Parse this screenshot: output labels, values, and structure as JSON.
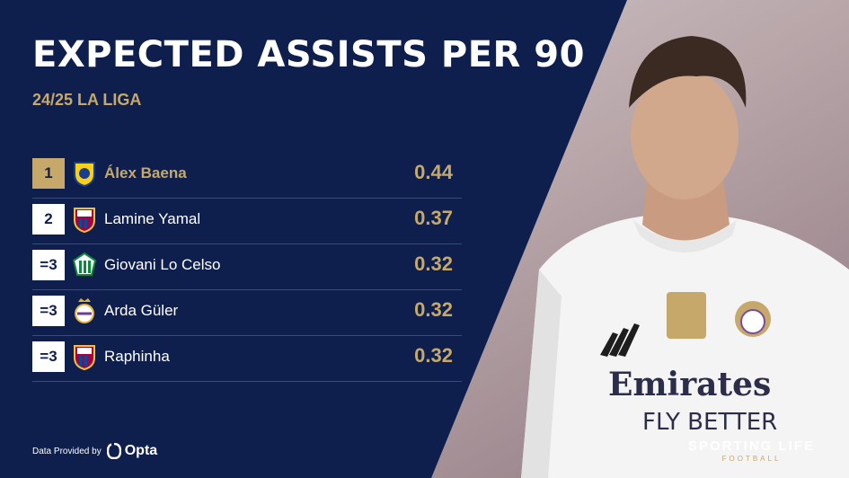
{
  "title": "EXPECTED ASSISTS PER 90",
  "subtitle": "24/25 LA LIGA",
  "rows": [
    {
      "rank": "1",
      "club": "villarreal-crest-icon",
      "player": "Álex Baena",
      "value": "0.44"
    },
    {
      "rank": "2",
      "club": "barcelona-crest-icon",
      "player": "Lamine Yamal",
      "value": "0.37"
    },
    {
      "rank": "=3",
      "club": "real-betis-crest-icon",
      "player": "Giovani Lo Celso",
      "value": "0.32"
    },
    {
      "rank": "=3",
      "club": "real-madrid-crest-icon",
      "player": "Arda Güler",
      "value": "0.32"
    },
    {
      "rank": "=3",
      "club": "barcelona-crest-icon",
      "player": "Raphinha",
      "value": "0.32"
    }
  ],
  "footer": {
    "provided_by": "Data Provided by",
    "provider": "Opta"
  },
  "brand": {
    "line1": "SPORTING LIFE",
    "line2": "FOOTBALL"
  },
  "colors": {
    "navy": "#0f1f4d",
    "gold": "#c6a96a",
    "white": "#ffffff"
  }
}
